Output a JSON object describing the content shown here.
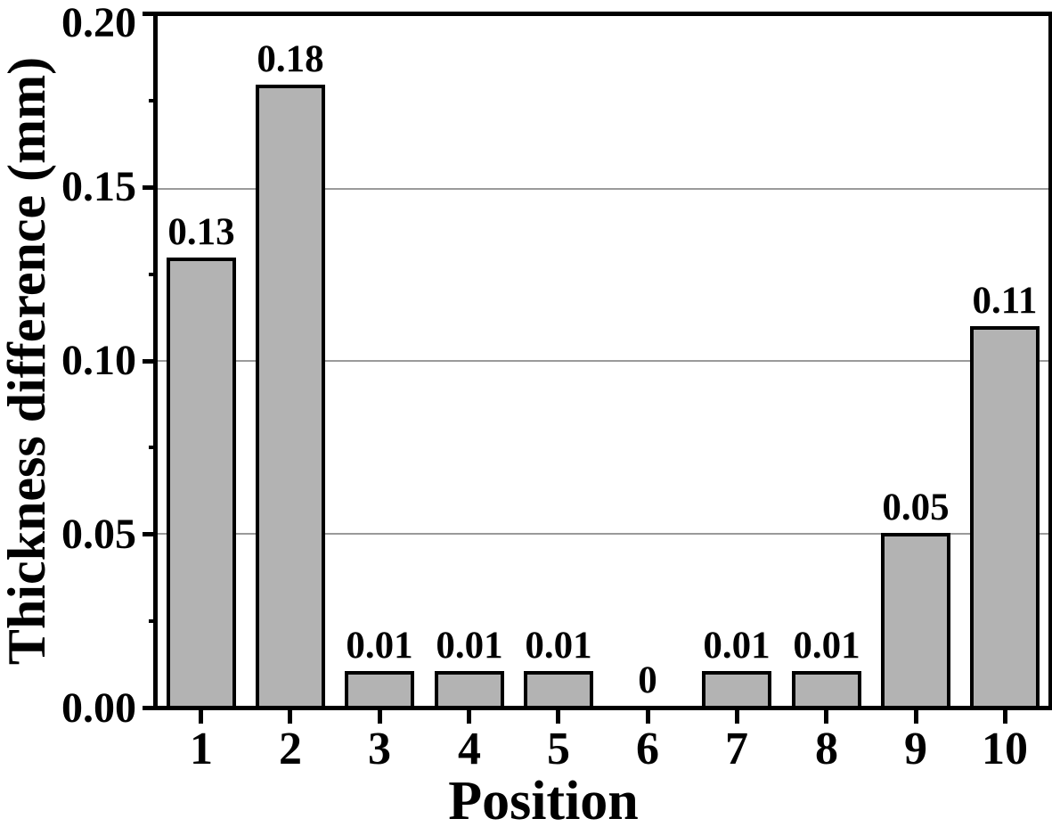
{
  "figure": {
    "background_color": "#ffffff",
    "text_color": "#000000"
  },
  "chart_data": {
    "type": "bar",
    "title": "",
    "xlabel": "Position",
    "ylabel": "Thickness difference (mm)",
    "categories": [
      "1",
      "2",
      "3",
      "4",
      "5",
      "6",
      "7",
      "8",
      "9",
      "10"
    ],
    "values": [
      0.13,
      0.18,
      0.01,
      0.01,
      0.01,
      0,
      0.01,
      0.01,
      0.05,
      0.11
    ],
    "value_labels": [
      "0.13",
      "0.18",
      "0.01",
      "0.01",
      "0.01",
      "0",
      "0.01",
      "0.01",
      "0.05",
      "0.11"
    ],
    "ylim": [
      0,
      0.2
    ],
    "y_major_ticks": [
      {
        "value": 0.0,
        "label": "0.00"
      },
      {
        "value": 0.05,
        "label": "0.05"
      },
      {
        "value": 0.1,
        "label": "0.10"
      },
      {
        "value": 0.15,
        "label": "0.15"
      },
      {
        "value": 0.2,
        "label": "0.20"
      }
    ],
    "y_minor_tick_values": [
      0.025,
      0.075,
      0.125,
      0.175
    ],
    "grid": {
      "y_values": [
        0.05,
        0.1,
        0.15
      ],
      "color": "#9a9a9a",
      "style": "solid"
    },
    "legend": "none",
    "bar_fill_color": "#b3b3b3",
    "bar_border_color": "#000000",
    "frame": "full-box"
  }
}
